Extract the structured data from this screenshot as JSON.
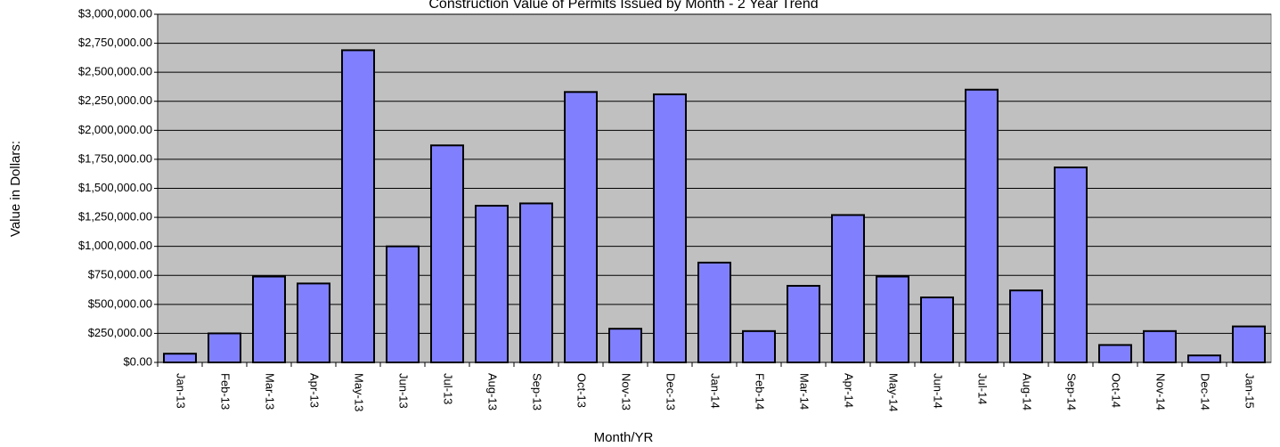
{
  "chart_data": {
    "type": "bar",
    "title": "Construction Value of Permits Issued by Month - 2 Year Trend",
    "y_label": "Value in Dollars:",
    "x_label": "Month/YR",
    "categories": [
      "Jan-13",
      "Feb-13",
      "Mar-13",
      "Apr-13",
      "May-13",
      "Jun-13",
      "Jul-13",
      "Aug-13",
      "Sep-13",
      "Oct-13",
      "Nov-13",
      "Dec-13",
      "Jan-14",
      "Feb-14",
      "Mar-14",
      "Apr-14",
      "May-14",
      "Jun-14",
      "Jul-14",
      "Aug-14",
      "Sep-14",
      "Oct-14",
      "Nov-14",
      "Dec-14",
      "Jan-15"
    ],
    "values": [
      75000,
      250000,
      740000,
      680000,
      2690000,
      1000000,
      1870000,
      1350000,
      1370000,
      2330000,
      290000,
      2310000,
      860000,
      270000,
      660000,
      1270000,
      740000,
      560000,
      2350000,
      620000,
      1680000,
      150000,
      270000,
      60000,
      310000
    ],
    "color": "#8080ff",
    "background": "#c0c0c0",
    "ylim": [
      0,
      3000000
    ],
    "yticks": [
      {
        "value": 0,
        "label": "$0.00"
      },
      {
        "value": 250000,
        "label": "$250,000.00"
      },
      {
        "value": 500000,
        "label": "$500,000.00"
      },
      {
        "value": 750000,
        "label": "$750,000.00"
      },
      {
        "value": 1000000,
        "label": "$1,000,000.00"
      },
      {
        "value": 1250000,
        "label": "$1,250,000.00"
      },
      {
        "value": 1500000,
        "label": "$1,500,000.00"
      },
      {
        "value": 1750000,
        "label": "$1,750,000.00"
      },
      {
        "value": 2000000,
        "label": "$2,000,000.00"
      },
      {
        "value": 2250000,
        "label": "$2,250,000.00"
      },
      {
        "value": 2500000,
        "label": "$2,500,000.00"
      },
      {
        "value": 2750000,
        "label": "$2,750,000.00"
      },
      {
        "value": 3000000,
        "label": "$3,000,000.00"
      }
    ],
    "grid": true
  }
}
